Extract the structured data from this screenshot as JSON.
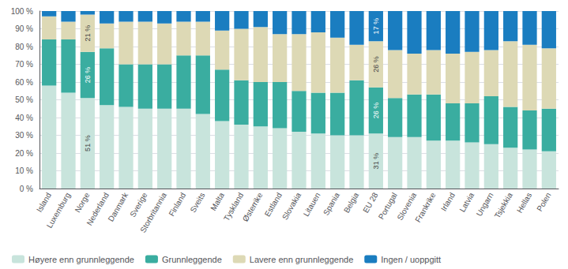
{
  "chart_data": {
    "type": "bar",
    "stacked": true,
    "categories": [
      "Island",
      "Luxemburg",
      "Norge",
      "Nederland",
      "Danmark",
      "Sverige",
      "Storbritannia",
      "Finland",
      "Sveits",
      "Malta",
      "Tyskland",
      "Østerrike",
      "Estland",
      "Slovakia",
      "Litauen",
      "Spania",
      "Belgia",
      "EU 28",
      "Portugal",
      "Slovenia",
      "Frankrike",
      "Irland",
      "Latvia",
      "Ungarn",
      "Tsjekkia",
      "Hellas",
      "Polen"
    ],
    "series": [
      {
        "name": "Høyere enn grunnleggende",
        "color": "#c8e4dc",
        "values": [
          58,
          54,
          51,
          47,
          46,
          45,
          45,
          45,
          42,
          38,
          36,
          35,
          34,
          32,
          31,
          30,
          30,
          31,
          29,
          29,
          27,
          27,
          26,
          25,
          23,
          22,
          21
        ]
      },
      {
        "name": "Grunnleggende",
        "color": "#3aada0",
        "values": [
          26,
          30,
          26,
          32,
          24,
          25,
          25,
          30,
          33,
          29,
          25,
          25,
          26,
          23,
          23,
          24,
          31,
          26,
          22,
          24,
          26,
          21,
          22,
          27,
          23,
          22,
          24
        ]
      },
      {
        "name": "Lavere enn grunnleggende",
        "color": "#ddd9b5",
        "values": [
          13,
          10,
          21,
          14,
          24,
          24,
          23,
          19,
          19,
          22,
          29,
          31,
          27,
          32,
          34,
          31,
          20,
          26,
          27,
          23,
          25,
          28,
          29,
          26,
          37,
          37,
          34
        ]
      },
      {
        "name": "Ingen / uoppgitt",
        "color": "#1a7dc0",
        "values": [
          3,
          6,
          2,
          7,
          6,
          6,
          7,
          6,
          6,
          11,
          10,
          9,
          13,
          13,
          12,
          15,
          19,
          17,
          22,
          24,
          22,
          24,
          23,
          22,
          17,
          19,
          21
        ]
      }
    ],
    "annotations": [
      {
        "text": "51 %",
        "category": "Norge",
        "series": "Høyere enn grunnleggende"
      },
      {
        "text": "26 %",
        "category": "Norge",
        "series": "Grunnleggende"
      },
      {
        "text": "21 %",
        "category": "Norge",
        "series": "Lavere enn grunnleggende"
      },
      {
        "text": "31 %",
        "category": "EU 28",
        "series": "Høyere enn grunnleggende"
      },
      {
        "text": "26 %",
        "category": "EU 28",
        "series": "Grunnleggende"
      },
      {
        "text": "26 %",
        "category": "EU 28",
        "series": "Lavere enn grunnleggende"
      },
      {
        "text": "17 %",
        "category": "EU 28",
        "series": "Ingen / uoppgitt"
      }
    ],
    "ylim": [
      0,
      100
    ],
    "yticks": [
      {
        "value": 0,
        "label": "0 %"
      },
      {
        "value": 10,
        "label": "10 %"
      },
      {
        "value": 20,
        "label": "20 %"
      },
      {
        "value": 30,
        "label": "30 %"
      },
      {
        "value": 40,
        "label": "40 %"
      },
      {
        "value": 50,
        "label": "50 %"
      },
      {
        "value": 60,
        "label": "60 %"
      },
      {
        "value": 70,
        "label": "70 %"
      },
      {
        "value": 80,
        "label": "80 %"
      },
      {
        "value": 90,
        "label": "90 %"
      },
      {
        "value": 100,
        "label": "100 %"
      }
    ],
    "grid": true,
    "legend": "lower left"
  }
}
